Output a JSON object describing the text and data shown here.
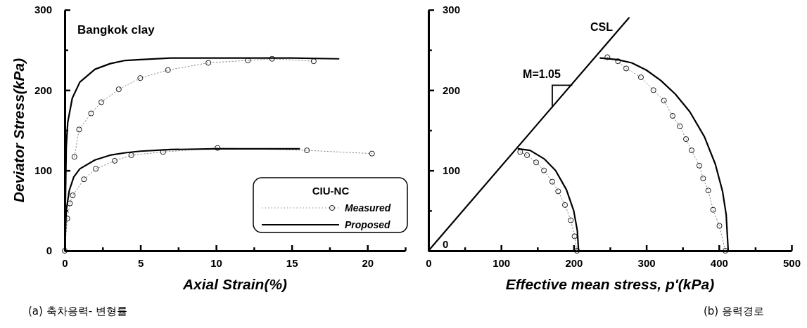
{
  "chart_data": [
    {
      "type": "line",
      "xlabel": "Axial Strain(%)",
      "ylabel": "Deviator Stress(kPa)",
      "xlim": [
        0,
        22.5
      ],
      "ylim": [
        0,
        300
      ],
      "xticks": [
        0,
        {
          "value": 2.5,
          "label": null
        },
        5,
        {
          "value": 7.5,
          "label": null
        },
        10,
        {
          "value": 12.5,
          "label": null
        },
        15,
        {
          "value": 17.5,
          "label": null
        },
        20,
        {
          "value": 22.5,
          "label": null
        }
      ],
      "yticks": [
        0,
        {
          "value": 50,
          "label": null
        },
        100,
        {
          "value": 150,
          "label": null
        },
        200,
        {
          "value": 250,
          "label": null
        },
        300
      ],
      "legend": "bottom right",
      "legend_title": "CIU-NC",
      "annotations": [
        "Bangkok clay",
        "(a) 축차응력- 변형률"
      ],
      "series": [
        {
          "name": "Measured",
          "color": "#000000",
          "marker": "circle",
          "line_style": "dotted",
          "x": [
            0,
            0.17,
            0.34,
            0.53,
            1.27,
            2.05,
            3.3,
            4.4,
            6.5,
            10.1,
            16.0,
            20.3
          ],
          "values": [
            0,
            40,
            59,
            69,
            89,
            102,
            112,
            119,
            123,
            128,
            125,
            121
          ]
        },
        {
          "color": "#000000",
          "marker": "circle",
          "line_style": "dotted",
          "x": [
            0.64,
            0.95,
            1.74,
            2.42,
            3.57,
            4.99,
            6.82,
            9.49,
            12.1,
            13.7,
            16.45
          ],
          "values": [
            117,
            151,
            171,
            185,
            201,
            215,
            225,
            234,
            237,
            239,
            236
          ]
        },
        {
          "name": "Proposed",
          "color": "#000000",
          "marker": "none",
          "line_style": "solid",
          "x": [
            0,
            0.1,
            0.2,
            0.5,
            1,
            2,
            3,
            4,
            5,
            7,
            10,
            15,
            18.1
          ],
          "values": [
            0,
            130,
            160,
            190,
            210,
            226,
            233,
            237,
            238,
            240,
            240,
            240,
            239
          ]
        },
        {
          "color": "#000000",
          "marker": "none",
          "line_style": "solid",
          "x": [
            0,
            0.1,
            0.3,
            0.6,
            1,
            2,
            3,
            4,
            5,
            7,
            10,
            15.5
          ],
          "values": [
            0,
            50,
            75,
            92,
            102,
            113,
            119,
            122,
            124,
            126,
            127,
            127
          ]
        }
      ]
    },
    {
      "type": "line",
      "xlabel": "Effective mean stress, p'(kPa)",
      "xlim": [
        0,
        500
      ],
      "ylim": [
        0,
        300
      ],
      "xticks": [
        0,
        {
          "value": 50,
          "label": null
        },
        100,
        {
          "value": 150,
          "label": null
        },
        200,
        {
          "value": 250,
          "label": null
        },
        300,
        {
          "value": 350,
          "label": null
        },
        400,
        {
          "value": 450,
          "label": null
        },
        500
      ],
      "yticks": [
        0,
        {
          "value": 50,
          "label": null
        },
        100,
        {
          "value": 150,
          "label": null
        },
        200,
        {
          "value": 250,
          "label": null
        },
        300
      ],
      "annotations": [
        "CSL",
        "M=1.05",
        "(b) 응력경로"
      ],
      "series": [
        {
          "color": "#000000",
          "marker": "none",
          "line_style": "solid",
          "x": [
            0,
            276
          ],
          "values": [
            0,
            290
          ]
        },
        {
          "color": "#000000",
          "marker": "circle",
          "line_style": "dotted",
          "x": [
            126.3,
            135.7,
            148.3,
            159,
            170.5,
            178.6,
            188,
            196,
            201.2,
            204.5
          ],
          "values": [
            123,
            119,
            110,
            100,
            86,
            74,
            57,
            38,
            18,
            0
          ]
        },
        {
          "color": "#000000",
          "marker": "circle",
          "line_style": "dotted",
          "x": [
            246.4,
            261,
            272.3,
            292.6,
            309.8,
            324.3,
            336.2,
            346.2,
            354.7,
            362.4,
            373,
            378.2,
            385.3,
            392,
            400.7,
            408.9
          ],
          "values": [
            241,
            236,
            227,
            216,
            200,
            187,
            168,
            155,
            139,
            125,
            106,
            90,
            75,
            51,
            31,
            0
          ]
        },
        {
          "color": "#000000",
          "marker": "none",
          "line_style": "solid",
          "x": [
            123.7,
            140,
            160,
            175,
            190,
            200,
            205,
            206.7
          ],
          "values": [
            127,
            125,
            114,
            100,
            76,
            50,
            25,
            0
          ]
        },
        {
          "color": "#000000",
          "marker": "none",
          "line_style": "solid",
          "x": [
            236.7,
            260,
            280,
            300,
            320,
            340,
            360,
            380,
            395,
            405,
            410,
            412.8
          ],
          "values": [
            240,
            238,
            234,
            225,
            212,
            195,
            173,
            142,
            108,
            74,
            45,
            0
          ]
        }
      ]
    }
  ]
}
